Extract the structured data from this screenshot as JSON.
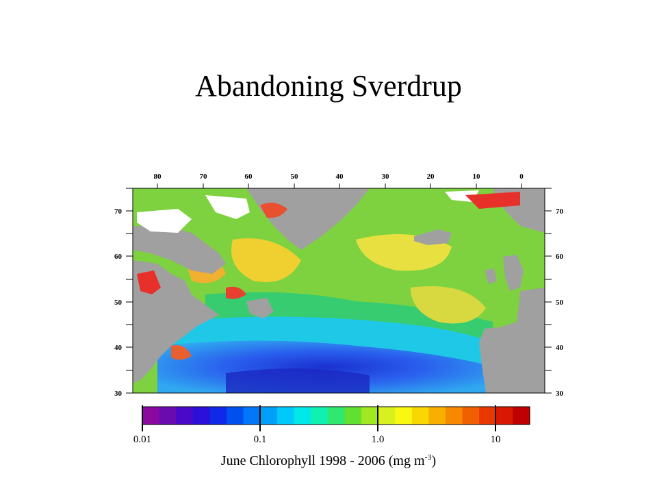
{
  "slide": {
    "title": "Abandoning Sverdrup",
    "caption_main": "June Chlorophyll 1998 - 2006 (mg m",
    "caption_sup": "-3",
    "caption_end": ")"
  },
  "map": {
    "top_lon_labels": [
      "80",
      "70",
      "60",
      "50",
      "40",
      "30",
      "20",
      "10",
      "0"
    ],
    "lat_labels": [
      "70",
      "60",
      "50",
      "40",
      "30"
    ],
    "colors": {
      "land": "#a0a0a0",
      "ice": "#ffffff",
      "coastal_high": "#e8302a",
      "shelf": "#f2c229",
      "mid": "#7ed23f",
      "green": "#35c85a",
      "oligotrophic": "#2c6ef0",
      "deep_blue": "#1c3ad8",
      "cyan": "#1fc8e8"
    }
  },
  "colorbar": {
    "labels": [
      "0.01",
      "0.1",
      "1.0",
      "10"
    ],
    "colors": [
      "#8a0aa0",
      "#6a0bb0",
      "#4a08c8",
      "#2a10d8",
      "#1028e8",
      "#0050f0",
      "#0078f8",
      "#00a0f8",
      "#00c8f8",
      "#00e8e8",
      "#10f0b0",
      "#30e870",
      "#60e030",
      "#a0e820",
      "#d8f020",
      "#f8f810",
      "#f8d800",
      "#f8b000",
      "#f88800",
      "#f06000",
      "#e83800",
      "#d81800",
      "#c00000"
    ]
  }
}
